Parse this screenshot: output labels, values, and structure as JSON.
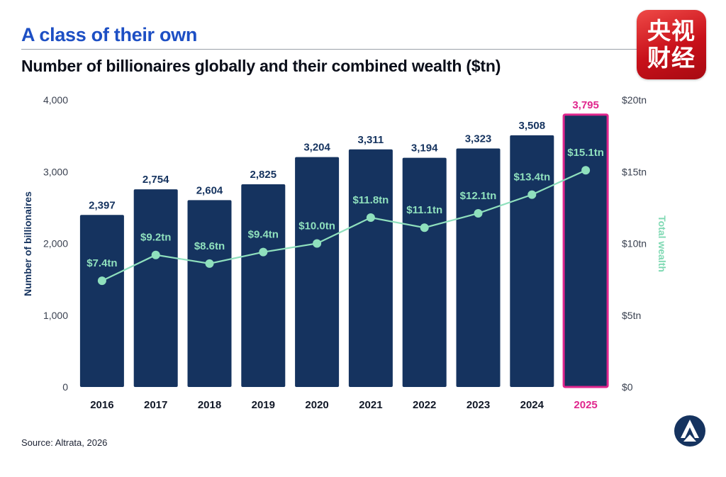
{
  "header": {
    "kicker": "A class of their own",
    "title": "Number of billionaires globally and their combined wealth ($tn)"
  },
  "badge": {
    "line1": "央视",
    "line2": "财经"
  },
  "footer": {
    "source": "Source: Altrata, 2026"
  },
  "colors": {
    "bar": "#15335f",
    "bar_highlight": "#15335f",
    "highlight_border": "#e0268d",
    "highlight_text": "#e0268d",
    "line": "#8fe0bd",
    "wealth_label": "#8fe0bd",
    "axis_text": "#3a4150",
    "left_axis_title": "#15335f",
    "right_axis_title": "#7fd9b3"
  },
  "chart_data": {
    "type": "bar",
    "categories": [
      "2016",
      "2017",
      "2018",
      "2019",
      "2020",
      "2021",
      "2022",
      "2023",
      "2024",
      "2025"
    ],
    "highlight_category": "2025",
    "series": [
      {
        "type": "bar",
        "values": [
          2397,
          2754,
          2604,
          2825,
          3204,
          3311,
          3194,
          3323,
          3508,
          3795
        ],
        "labels": [
          "2,397",
          "2,754",
          "2,604",
          "2,825",
          "3,204",
          "3,311",
          "3,194",
          "3,323",
          "3,508",
          "3,795"
        ],
        "axis": "left"
      },
      {
        "type": "line",
        "values": [
          7.4,
          9.2,
          8.6,
          9.4,
          10.0,
          11.8,
          11.1,
          12.1,
          13.4,
          15.1
        ],
        "labels": [
          "$7.4tn",
          "$9.2tn",
          "$8.6tn",
          "$9.4tn",
          "$10.0tn",
          "$11.8tn",
          "$11.1tn",
          "$12.1tn",
          "$13.4tn",
          "$15.1tn"
        ],
        "axis": "right"
      }
    ],
    "y_left": {
      "label": "Number of billionaires",
      "lim": [
        0,
        4000
      ],
      "ticks": [
        0,
        1000,
        2000,
        3000,
        4000
      ],
      "tick_labels": [
        "0",
        "1,000",
        "2,000",
        "3,000",
        "4,000"
      ]
    },
    "y_right": {
      "label": "Total wealth",
      "lim": [
        0,
        20
      ],
      "ticks": [
        0,
        5,
        10,
        15,
        20
      ],
      "tick_labels": [
        "$0",
        "$5tn",
        "$10tn",
        "$15tn",
        "$20tn"
      ]
    },
    "grid": false,
    "legend": "none"
  }
}
